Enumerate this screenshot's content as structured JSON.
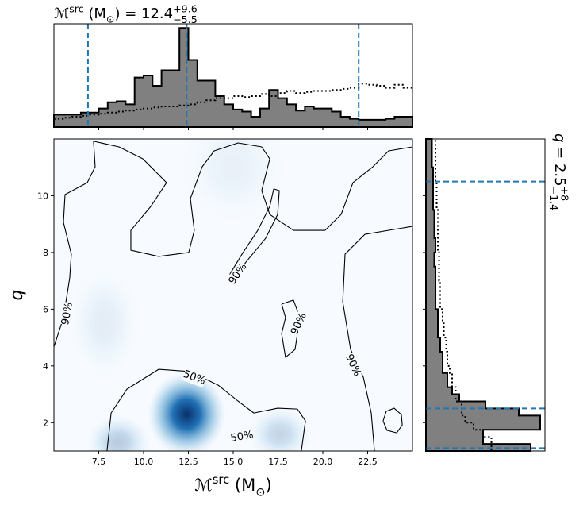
{
  "chart_data": [
    {
      "type": "contour",
      "xlim": [
        5,
        25
      ],
      "ylim": [
        1,
        12
      ],
      "xticks": [
        7.5,
        {
          "value": 10,
          "label": "10.0"
        },
        12.5,
        {
          "value": 15,
          "label": "15.0"
        },
        17.5,
        {
          "value": 20,
          "label": "20.0"
        },
        22.5
      ],
      "yticks": [
        2,
        4,
        6,
        8,
        10
      ],
      "x_label": {
        "symbol": "ℳ",
        "sup": "src",
        "text": " (M",
        "sub": "⊙",
        "close": ")"
      },
      "y_label": "q",
      "density_peaks": [
        {
          "x": 12.4,
          "y": 2.3,
          "sx": 1.1,
          "sy": 0.75,
          "amp": 1.0
        },
        {
          "x": 8.6,
          "y": 1.3,
          "sx": 0.9,
          "sy": 0.5,
          "amp": 0.25
        },
        {
          "x": 17.6,
          "y": 1.6,
          "sx": 0.9,
          "sy": 0.5,
          "amp": 0.2
        },
        {
          "x": 7.8,
          "y": 5.5,
          "sx": 1.0,
          "sy": 1.0,
          "amp": 0.08
        },
        {
          "x": 15.0,
          "y": 11.0,
          "sx": 1.5,
          "sy": 1.0,
          "amp": 0.06
        }
      ],
      "contours": [
        {
          "points": [
            [
              5.0,
              4.67
            ],
            [
              5.53,
              5.7
            ],
            [
              5.88,
              7.1
            ],
            [
              5.97,
              7.94
            ],
            [
              5.53,
              9.06
            ],
            [
              5.62,
              10.04
            ],
            [
              6.86,
              10.46
            ],
            [
              7.3,
              11.02
            ],
            [
              7.21,
              11.92
            ],
            [
              8.63,
              11.72
            ],
            [
              9.96,
              11.3
            ],
            [
              11.28,
              10.46
            ],
            [
              10.4,
              9.62
            ],
            [
              9.29,
              8.78
            ],
            [
              9.29,
              8.08
            ],
            [
              10.84,
              7.86
            ],
            [
              12.52,
              8.0
            ],
            [
              12.83,
              8.78
            ],
            [
              12.61,
              9.9
            ],
            [
              13.27,
              11.02
            ],
            [
              13.94,
              11.58
            ],
            [
              15.27,
              11.86
            ],
            [
              16.59,
              11.72
            ],
            [
              17.04,
              11.3
            ],
            [
              16.59,
              10.18
            ],
            [
              17.04,
              9.34
            ],
            [
              18.36,
              8.78
            ],
            [
              20.13,
              8.78
            ],
            [
              21.02,
              9.34
            ],
            [
              21.68,
              10.46
            ],
            [
              22.79,
              11.02
            ],
            [
              23.67,
              11.58
            ],
            [
              25.0,
              11.72
            ]
          ]
        },
        {
          "points": [
            [
              25.0,
              8.92
            ],
            [
              22.35,
              8.64
            ],
            [
              21.24,
              7.94
            ],
            [
              21.11,
              6.26
            ],
            [
              21.55,
              4.58
            ],
            [
              22.26,
              3.6
            ],
            [
              22.7,
              2.34
            ],
            [
              22.88,
              1.0
            ]
          ]
        },
        {
          "points": [
            [
              17.26,
              10.24
            ],
            [
              17.57,
              10.18
            ],
            [
              17.48,
              9.34
            ],
            [
              16.81,
              8.5
            ],
            [
              15.71,
              7.66
            ],
            [
              14.91,
              6.96
            ],
            [
              14.82,
              7.24
            ],
            [
              15.49,
              7.94
            ],
            [
              16.37,
              8.78
            ],
            [
              17.04,
              9.62
            ],
            [
              17.26,
              10.24
            ]
          ]
        },
        {
          "points": [
            [
              17.7,
              6.18
            ],
            [
              18.36,
              6.32
            ],
            [
              18.72,
              5.7
            ],
            [
              18.45,
              4.58
            ],
            [
              17.92,
              4.3
            ],
            [
              17.7,
              5.14
            ],
            [
              17.92,
              5.7
            ],
            [
              17.7,
              6.18
            ]
          ]
        },
        {
          "points": [
            [
              23.36,
              2.06
            ],
            [
              23.54,
              2.4
            ],
            [
              23.98,
              2.51
            ],
            [
              24.38,
              2.28
            ],
            [
              24.43,
              1.92
            ],
            [
              24.12,
              1.64
            ],
            [
              23.58,
              1.73
            ],
            [
              23.36,
              2.06
            ]
          ]
        },
        {
          "points": [
            [
              7.96,
              1.0
            ],
            [
              8.19,
              2.34
            ],
            [
              9.07,
              3.18
            ],
            [
              10.84,
              3.88
            ],
            [
              12.61,
              3.8
            ],
            [
              14.16,
              3.32
            ],
            [
              15.27,
              2.76
            ],
            [
              16.15,
              2.34
            ],
            [
              17.48,
              2.51
            ],
            [
              18.58,
              2.48
            ],
            [
              19.03,
              2.06
            ],
            [
              18.8,
              1.0
            ]
          ]
        }
      ],
      "contour_labels": [
        {
          "text": "90%",
          "x": 5.75,
          "y": 5.84
        },
        {
          "text": "90%",
          "x": 15.27,
          "y": 7.24
        },
        {
          "text": "90%",
          "x": 18.67,
          "y": 5.48
        },
        {
          "text": "90%",
          "x": 21.68,
          "y": 4.02
        },
        {
          "text": "50%",
          "x": 12.83,
          "y": 3.58
        },
        {
          "text": "50%",
          "x": 15.49,
          "y": 1.5
        }
      ]
    },
    {
      "type": "histogram",
      "title": {
        "symbol": "ℳ",
        "sup": "src",
        "text": " (M",
        "sub": "⊙",
        "rest": ") = 12.4",
        "plus": "+9.6",
        "minus": "−5.5"
      },
      "xlim": [
        5,
        25
      ],
      "ylim": [
        0,
        1
      ],
      "bins": [
        5,
        5.5,
        6,
        6.5,
        7,
        7.5,
        8,
        8.5,
        9,
        9.5,
        10,
        10.5,
        11,
        11.5,
        12,
        12.5,
        13,
        13.5,
        14,
        14.5,
        15,
        15.5,
        16,
        16.5,
        17,
        17.5,
        18,
        18.5,
        19,
        19.5,
        20,
        20.5,
        21,
        21.5,
        22,
        22.5,
        23,
        23.5,
        24,
        24.5,
        25
      ],
      "values": [
        0.12,
        0.12,
        0.12,
        0.14,
        0.14,
        0.18,
        0.24,
        0.25,
        0.22,
        0.48,
        0.5,
        0.4,
        0.55,
        0.55,
        0.96,
        0.65,
        0.45,
        0.45,
        0.3,
        0.22,
        0.17,
        0.15,
        0.1,
        0.18,
        0.36,
        0.28,
        0.22,
        0.16,
        0.2,
        0.18,
        0.18,
        0.15,
        0.1,
        0.08,
        0.07,
        0.07,
        0.07,
        0.08,
        0.1,
        0.1
      ],
      "prior_values": [
        0.08,
        0.09,
        0.1,
        0.11,
        0.12,
        0.13,
        0.14,
        0.15,
        0.16,
        0.17,
        0.18,
        0.19,
        0.2,
        0.2,
        0.21,
        0.22,
        0.24,
        0.26,
        0.28,
        0.28,
        0.3,
        0.29,
        0.3,
        0.32,
        0.3,
        0.33,
        0.35,
        0.33,
        0.34,
        0.35,
        0.35,
        0.36,
        0.37,
        0.38,
        0.42,
        0.41,
        0.4,
        0.38,
        0.41,
        0.38
      ],
      "credible_lines": [
        6.9,
        12.4,
        22.0
      ],
      "color": "#808080",
      "prior_color": "#000000",
      "line_color": "#1f77b4"
    },
    {
      "type": "histogram",
      "orientation": "horizontal",
      "side_label": {
        "symbol": "q",
        "rest": " = 2.5",
        "plus": "+8",
        "minus": "−1.4"
      },
      "xlim": [
        0,
        1
      ],
      "ylim": [
        1,
        12
      ],
      "bins": [
        1,
        1.25,
        1.5,
        1.75,
        2,
        2.25,
        2.5,
        2.75,
        3,
        3.25,
        3.5,
        3.75,
        4,
        4.5,
        5,
        5.5,
        6,
        6.5,
        7,
        7.5,
        8,
        8.5,
        9,
        9.5,
        10,
        10.5,
        11,
        11.5,
        12
      ],
      "values": [
        0.88,
        0.48,
        0.48,
        0.96,
        0.96,
        0.78,
        0.5,
        0.28,
        0.22,
        0.18,
        0.18,
        0.14,
        0.14,
        0.12,
        0.1,
        0.1,
        0.08,
        0.08,
        0.08,
        0.07,
        0.08,
        0.07,
        0.07,
        0.06,
        0.06,
        0.06,
        0.05,
        0.05
      ],
      "prior_values": [
        0.55,
        0.55,
        0.48,
        0.4,
        0.33,
        0.3,
        0.3,
        0.25,
        0.25,
        0.22,
        0.22,
        0.2,
        0.18,
        0.17,
        0.15,
        0.14,
        0.12,
        0.12,
        0.11,
        0.11,
        0.1,
        0.1,
        0.1,
        0.09,
        0.09,
        0.08,
        0.08,
        0.08
      ],
      "credible_lines": [
        1.1,
        2.5,
        10.5
      ],
      "color": "#808080",
      "prior_color": "#000000",
      "line_color": "#1f77b4"
    }
  ]
}
